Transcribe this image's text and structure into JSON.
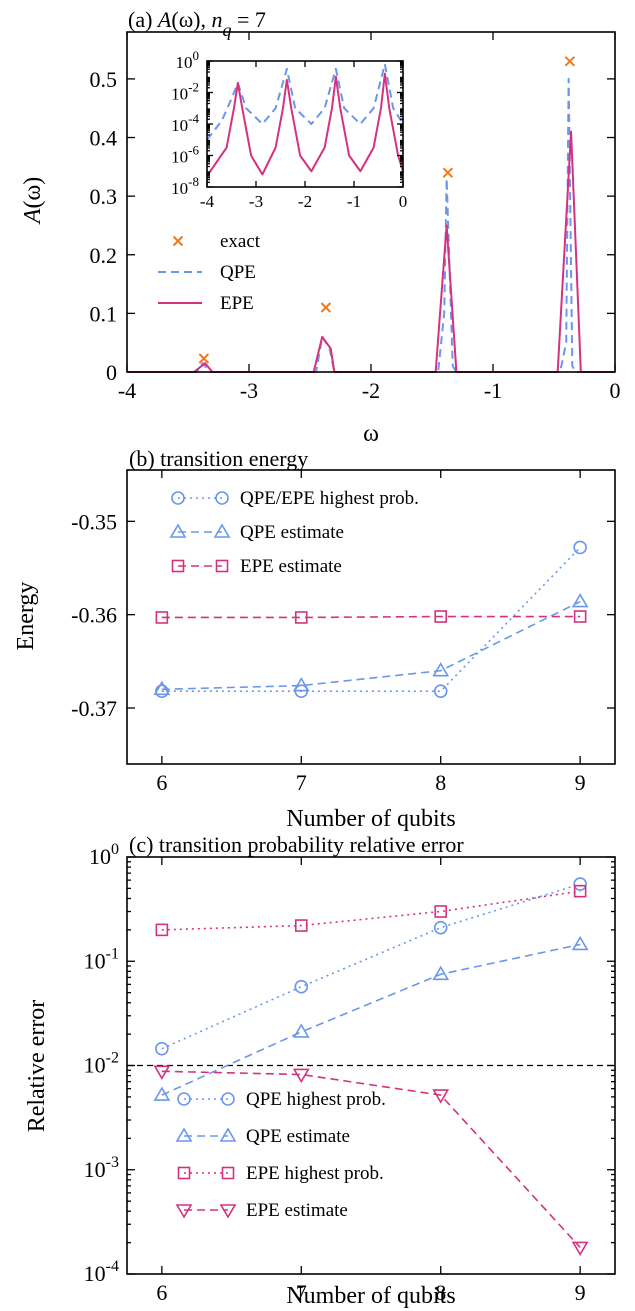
{
  "colors": {
    "qpe": "#6b97ea",
    "epe": "#d4327f",
    "exact": "#ee7a1e",
    "axis": "#000000"
  },
  "chart_data": [
    {
      "type": "line",
      "title": "(a) A(ω), n_q = 7",
      "title_parts": [
        "(a) ",
        "A",
        "(ω), ",
        "n",
        "q",
        " = 7"
      ],
      "xlabel": "ω",
      "ylabel_parts": [
        "A",
        "(ω)"
      ],
      "xlim": [
        -4,
        0
      ],
      "ylim": [
        0,
        0.58
      ],
      "xticks": [
        -4,
        -3,
        -2,
        -1,
        0
      ],
      "xtick_labels": [
        "-4",
        "-3",
        "-2",
        "-1",
        "0"
      ],
      "yticks": [
        0,
        0.1,
        0.2,
        0.3,
        0.4,
        0.5
      ],
      "ytick_labels": [
        "0",
        "0.1",
        "0.2",
        "0.3",
        "0.4",
        "0.5"
      ],
      "legend_position": "left",
      "series": [
        {
          "name": "exact",
          "style": "markers-x",
          "color_key": "exact",
          "x": [
            -3.37,
            -2.37,
            -1.37,
            -0.37
          ],
          "y": [
            0.023,
            0.11,
            0.34,
            0.53
          ]
        },
        {
          "name": "QPE",
          "style": "dashed",
          "color_key": "qpe",
          "x": [
            -4.0,
            -3.43,
            -3.38,
            -3.32,
            -2.45,
            -2.4,
            -2.34,
            -2.3,
            -1.45,
            -1.4,
            -1.38,
            -1.33,
            -1.3,
            -0.45,
            -0.4,
            -0.38,
            -0.35,
            -0.32,
            0.0
          ],
          "y": [
            0,
            0,
            0.015,
            0,
            0,
            0.06,
            0.04,
            0,
            0,
            0.1,
            0.33,
            0.01,
            0,
            0,
            0.05,
            0.5,
            0.01,
            0,
            0
          ]
        },
        {
          "name": "EPE",
          "style": "solid",
          "color_key": "epe",
          "x": [
            -4.0,
            -3.45,
            -3.36,
            -3.3,
            -2.47,
            -2.4,
            -2.33,
            -2.3,
            -1.47,
            -1.38,
            -1.3,
            -0.47,
            -0.36,
            -0.28,
            0.0
          ],
          "y": [
            0,
            0,
            0.015,
            0,
            0,
            0.06,
            0.04,
            0,
            0,
            0.25,
            0,
            0,
            0.41,
            0,
            0
          ]
        }
      ],
      "inset": {
        "type": "line",
        "yscale": "log",
        "xlim": [
          -4,
          0
        ],
        "ylim_exp": [
          -8,
          0
        ],
        "xticks": [
          -4,
          -3,
          -2,
          -1,
          0
        ],
        "xtick_labels": [
          "-4",
          "-3",
          "-2",
          "-1",
          "0"
        ],
        "ytick_exps": [
          -8,
          -6,
          -4,
          -2,
          0
        ],
        "ytick_labels": [
          "10-8",
          "10-6",
          "10-4",
          "10-2",
          "100"
        ],
        "series": [
          {
            "name": "QPE",
            "style": "dashed",
            "color_key": "qpe",
            "x": [
              -4.0,
              -3.7,
              -3.5,
              -3.37,
              -3.2,
              -2.87,
              -2.6,
              -2.37,
              -2.2,
              -1.87,
              -1.6,
              -1.37,
              -1.2,
              -0.87,
              -0.6,
              -0.37,
              -0.2,
              0.0
            ],
            "log10y": [
              -5.0,
              -3.8,
              -2.4,
              -1.4,
              -3.0,
              -4.0,
              -3.0,
              -0.5,
              -3.0,
              -4.0,
              -3.0,
              -0.5,
              -3.0,
              -4.0,
              -3.0,
              -0.2,
              -3.0,
              -4.0
            ]
          },
          {
            "name": "EPE",
            "style": "solid",
            "color_key": "epe",
            "x": [
              -4.0,
              -3.6,
              -3.45,
              -3.37,
              -3.28,
              -3.1,
              -2.87,
              -2.6,
              -2.45,
              -2.37,
              -2.28,
              -2.1,
              -1.87,
              -1.6,
              -1.45,
              -1.37,
              -1.28,
              -1.1,
              -0.87,
              -0.6,
              -0.45,
              -0.37,
              -0.28,
              -0.1,
              0.0
            ],
            "log10y": [
              -7.3,
              -5.5,
              -3.0,
              -1.4,
              -3.0,
              -6.0,
              -7.2,
              -5.5,
              -3.0,
              -1.2,
              -3.0,
              -6.0,
              -7.0,
              -5.5,
              -3.0,
              -1.0,
              -3.0,
              -6.0,
              -7.0,
              -5.5,
              -3.0,
              -0.8,
              -3.0,
              -6.0,
              -7.0
            ]
          }
        ]
      }
    },
    {
      "type": "line",
      "title": "(b) transition energy",
      "xlabel": "Number of qubits",
      "ylabel": "Energy",
      "xlim": [
        5.75,
        9.25
      ],
      "ylim": [
        -0.376,
        -0.3445
      ],
      "xticks": [
        6,
        7,
        8,
        9
      ],
      "xtick_labels": [
        "6",
        "7",
        "8",
        "9"
      ],
      "yticks": [
        -0.37,
        -0.36,
        -0.35
      ],
      "ytick_labels": [
        "-0.37",
        "-0.36",
        "-0.35"
      ],
      "legend_position": "top-left",
      "series": [
        {
          "name": "QPE/EPE highest prob.",
          "marker": "circle",
          "line": "dotted",
          "color_key": "qpe",
          "x": [
            6,
            7,
            8,
            9
          ],
          "y": [
            -0.3682,
            -0.3682,
            -0.3682,
            -0.3528
          ]
        },
        {
          "name": "QPE estimate",
          "marker": "triangle-up",
          "line": "dashed",
          "color_key": "qpe",
          "x": [
            6,
            7,
            8,
            9
          ],
          "y": [
            -0.368,
            -0.3676,
            -0.366,
            -0.3586
          ]
        },
        {
          "name": "EPE estimate",
          "marker": "square",
          "line": "dashed",
          "color_key": "epe",
          "x": [
            6,
            7,
            8,
            9
          ],
          "y": [
            -0.3603,
            -0.3603,
            -0.3602,
            -0.3602
          ]
        }
      ]
    },
    {
      "type": "line",
      "title": "(c) transition probability relative error",
      "xlabel": "Number of qubits",
      "ylabel": "Relative error",
      "yscale": "log",
      "xlim": [
        5.75,
        9.25
      ],
      "ylim_exp": [
        -4,
        0
      ],
      "xticks": [
        6,
        7,
        8,
        9
      ],
      "xtick_labels": [
        "6",
        "7",
        "8",
        "9"
      ],
      "ytick_exps": [
        -4,
        -3,
        -2,
        -1,
        0
      ],
      "ytick_labels": [
        "10-4",
        "10-3",
        "10-2",
        "10-1",
        "100"
      ],
      "reference_line": 0.01,
      "legend_position": "bottom-left",
      "series": [
        {
          "name": "QPE highest prob.",
          "marker": "circle",
          "line": "dotted",
          "color_key": "qpe",
          "x": [
            6,
            7,
            8,
            9
          ],
          "y": [
            0.0145,
            0.057,
            0.21,
            0.55
          ]
        },
        {
          "name": "QPE estimate",
          "marker": "triangle-up",
          "line": "dashed",
          "color_key": "qpe",
          "x": [
            6,
            7,
            8,
            9
          ],
          "y": [
            0.0052,
            0.021,
            0.075,
            0.145
          ]
        },
        {
          "name": "EPE highest prob.",
          "marker": "square",
          "line": "dotted",
          "color_key": "epe",
          "x": [
            6,
            7,
            8,
            9
          ],
          "y": [
            0.2,
            0.22,
            0.3,
            0.47
          ]
        },
        {
          "name": "EPE estimate",
          "marker": "triangle-down",
          "line": "dashed",
          "color_key": "epe",
          "x": [
            6,
            7,
            8,
            9
          ],
          "y": [
            0.0088,
            0.0082,
            0.0052,
            0.00018
          ]
        }
      ]
    }
  ]
}
